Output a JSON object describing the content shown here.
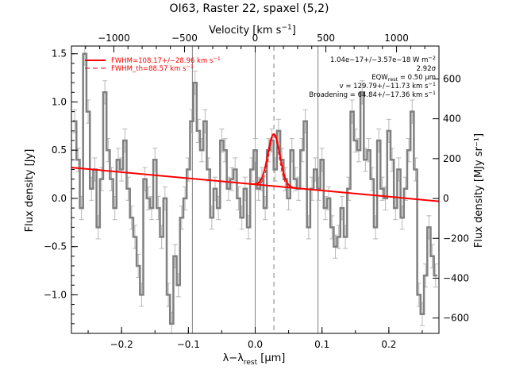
{
  "title": "OI63, Raster 22, spaxel (5,2)",
  "colors": {
    "data": "#808080",
    "fit": "#ff0000",
    "axes": "#000000",
    "marker": "#808080"
  },
  "chart_data": {
    "type": "line",
    "title": "OI63, Raster 22, spaxel (5,2)",
    "xlabel": "λ−λ_rest [μm]",
    "xlabel_parts": {
      "main": "λ−λ",
      "sub": "rest",
      "unit": " [μm]"
    },
    "ylabel": "Flux density [Jy]",
    "y2label": "Flux density [MJy sr⁻¹]",
    "x2label": "Velocity [km s⁻¹]",
    "x2label_parts": {
      "main": "Velocity [km s",
      "sup": "−1",
      "tail": "]"
    },
    "xlim": [
      -0.275,
      0.275
    ],
    "ylim": [
      -1.4,
      1.58
    ],
    "x2lim": [
      -1300,
      1300
    ],
    "y2lim": [
      -677,
      765
    ],
    "xticks": [
      -0.2,
      -0.1,
      0.0,
      0.1,
      0.2
    ],
    "xtick_labels": [
      "−0.2",
      "−0.1",
      "0.0",
      "0.1",
      "0.2"
    ],
    "yticks": [
      -1.0,
      -0.5,
      0.0,
      0.5,
      1.0,
      1.5
    ],
    "ytick_labels": [
      "−1.0",
      "−0.5",
      "0.0",
      "0.5",
      "1.0",
      "1.5"
    ],
    "x2ticks": [
      -1000,
      -500,
      0,
      500,
      1000
    ],
    "x2tick_labels": [
      "−1000",
      "−500",
      "0",
      "500",
      "1000"
    ],
    "y2ticks": [
      -600,
      -400,
      -200,
      0,
      200,
      400,
      600
    ],
    "y2tick_labels": [
      "−600",
      "−400",
      "−200",
      "0",
      "200",
      "400",
      "600"
    ],
    "vlines_solid": [
      -0.094,
      0.0,
      0.094
    ],
    "vline_dashed": 0.028,
    "series": [
      {
        "name": "spectrum",
        "style": "step-with-errorbars",
        "x": [
          -0.27,
          -0.265,
          -0.26,
          -0.255,
          -0.25,
          -0.245,
          -0.24,
          -0.235,
          -0.23,
          -0.225,
          -0.22,
          -0.215,
          -0.21,
          -0.205,
          -0.2,
          -0.195,
          -0.19,
          -0.185,
          -0.18,
          -0.175,
          -0.17,
          -0.165,
          -0.16,
          -0.155,
          -0.15,
          -0.145,
          -0.14,
          -0.135,
          -0.13,
          -0.125,
          -0.12,
          -0.115,
          -0.11,
          -0.105,
          -0.1,
          -0.095,
          -0.09,
          -0.085,
          -0.08,
          -0.075,
          -0.07,
          -0.065,
          -0.06,
          -0.055,
          -0.05,
          -0.045,
          -0.04,
          -0.035,
          -0.03,
          -0.025,
          -0.02,
          -0.015,
          -0.01,
          -0.005,
          0.0,
          0.005,
          0.01,
          0.015,
          0.02,
          0.025,
          0.03,
          0.035,
          0.04,
          0.045,
          0.05,
          0.055,
          0.06,
          0.065,
          0.07,
          0.075,
          0.08,
          0.085,
          0.09,
          0.095,
          0.1,
          0.105,
          0.11,
          0.115,
          0.12,
          0.125,
          0.13,
          0.135,
          0.14,
          0.145,
          0.15,
          0.155,
          0.16,
          0.165,
          0.17,
          0.175,
          0.18,
          0.185,
          0.19,
          0.195,
          0.2,
          0.205,
          0.21,
          0.215,
          0.22,
          0.225,
          0.23,
          0.235,
          0.24,
          0.245,
          0.25,
          0.255,
          0.26,
          0.265,
          0.27
        ],
        "values": [
          0.8,
          0.4,
          -0.1,
          1.5,
          0.9,
          0.1,
          0.3,
          -0.3,
          0.2,
          1.1,
          0.5,
          0.2,
          -0.1,
          0.4,
          0.3,
          0.6,
          0.1,
          -0.2,
          -0.4,
          -0.7,
          -1.0,
          0.2,
          0.0,
          -0.1,
          0.4,
          -0.1,
          -0.4,
          0.0,
          -1.0,
          -1.3,
          -0.6,
          -0.9,
          -0.2,
          0.0,
          0.3,
          0.8,
          1.2,
          0.7,
          0.5,
          0.8,
          0.3,
          -0.2,
          0.1,
          -0.1,
          0.6,
          0.5,
          0.1,
          0.2,
          0.3,
          0.0,
          -0.2,
          0.1,
          -0.3,
          0.3,
          0.5,
          0.1,
          0.2,
          -0.1,
          0.5,
          0.6,
          0.3,
          0.7,
          0.4,
          0.2,
          0.0,
          0.5,
          0.2,
          0.1,
          0.5,
          0.8,
          -0.3,
          0.1,
          0.3,
          0.1,
          0.4,
          -0.1,
          0.0,
          -0.3,
          -0.5,
          -0.4,
          -0.1,
          -0.4,
          0.1,
          0.9,
          0.6,
          0.5,
          1.1,
          0.4,
          0.5,
          0.2,
          -0.3,
          0.6,
          0.1,
          0.0,
          0.7,
          0.4,
          -0.1,
          0.3,
          -0.2,
          0.1,
          0.5,
          0.9,
          0.3,
          -1.0,
          -1.2,
          -0.8,
          -0.3,
          -0.6,
          -0.8
        ],
        "error": 0.12
      },
      {
        "name": "continuum",
        "style": "line",
        "x": [
          -0.275,
          0.275
        ],
        "values": [
          0.32,
          -0.03
        ]
      },
      {
        "name": "gaussian",
        "style": "line",
        "center": 0.028,
        "amplitude": 0.54,
        "sigma": 0.009
      }
    ],
    "legend": {
      "placement": "top-left",
      "entries": [
        {
          "text": "FWHM=108.17+/−28.96 km s",
          "sup": "−1",
          "style": "solid"
        },
        {
          "text": "FWHM_th=88.57 km s",
          "sup": "−1",
          "style": "dashed"
        }
      ]
    },
    "annotations": [
      {
        "text": "1.04e−17+/−3.57e−18 W m",
        "sup": "−2"
      },
      {
        "text": "2.92σ"
      },
      {
        "text": "EQW",
        "sub": "rest",
        "text2": " = 0.50 μm"
      },
      {
        "text": "v = 129.79+/−11.73 km s",
        "sup": "−1"
      },
      {
        "text": "Broadening = 64.84+/−17.36 km s",
        "sup": "−1"
      }
    ]
  }
}
